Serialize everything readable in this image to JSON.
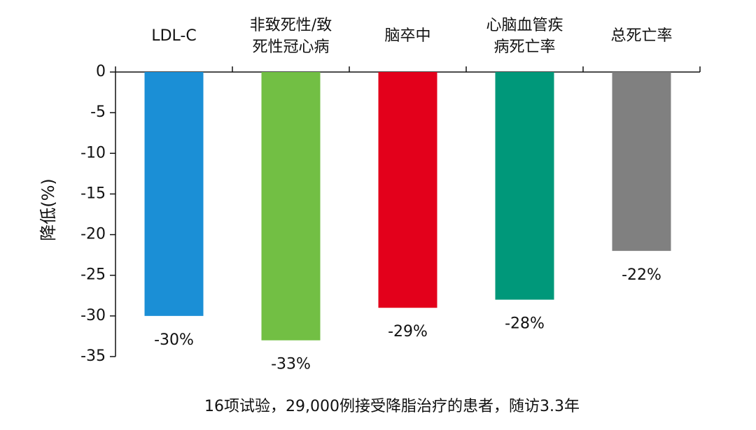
{
  "chart_data": {
    "type": "bar",
    "categories": [
      [
        "LDL-C"
      ],
      [
        "非致死性/致",
        "死性冠心病"
      ],
      [
        "脑卒中"
      ],
      [
        "心脑血管疾",
        "病死亡率"
      ],
      [
        "总死亡率"
      ]
    ],
    "values": [
      -30,
      -33,
      -29,
      -28,
      -22
    ],
    "value_labels": [
      "-30%",
      "-33%",
      "-29%",
      "-28%",
      "-22%"
    ],
    "colors": [
      "#1b8fd6",
      "#72bf44",
      "#e3001b",
      "#00987a",
      "#808080"
    ],
    "ylabel": "降低(%)",
    "note": "16项试验，29,000例接受降脂治疗的患者，随访3.3年",
    "ylim": [
      -35,
      0
    ],
    "yticks": [
      0,
      -5,
      -10,
      -15,
      -20,
      -25,
      -30,
      -35
    ]
  }
}
